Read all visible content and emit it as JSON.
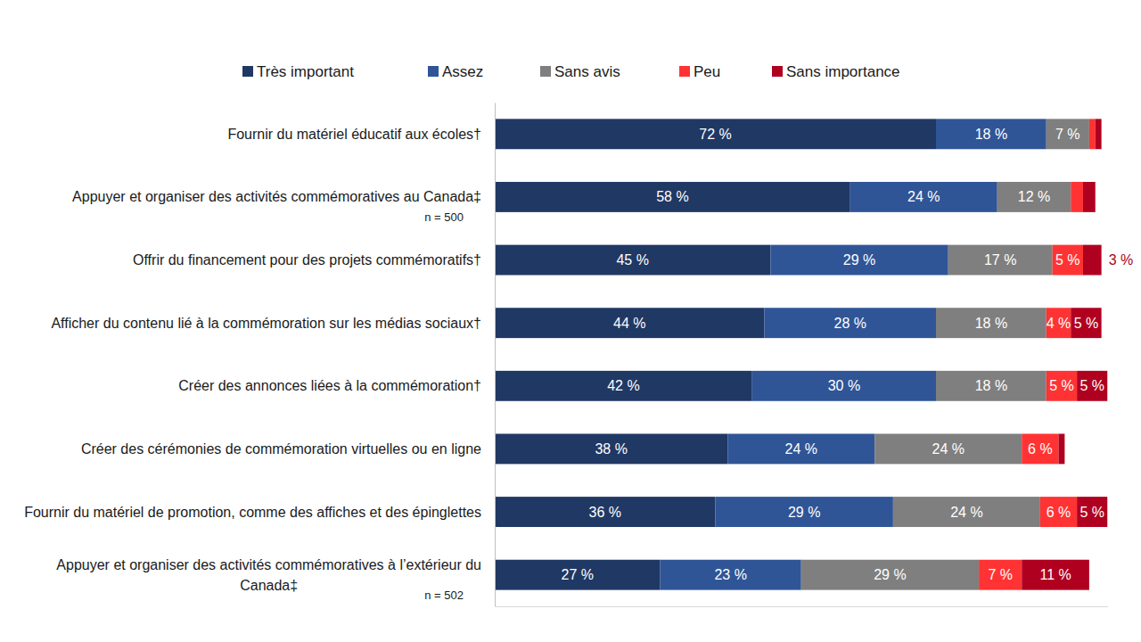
{
  "chart_data": {
    "type": "bar",
    "orientation": "horizontal",
    "stacked": true,
    "data_labels": true,
    "tick_labels": "y",
    "grid": false,
    "legend": "top",
    "xlim": [
      0,
      100
    ],
    "categories": [
      "Fournir du matériel éducatif aux écoles†",
      "Appuyer et organiser des activités commémoratives au Canada‡",
      "Offrir du financement pour des projets commémoratifs†",
      "Afficher du contenu lié à la commémoration sur les médias sociaux†",
      "Créer des annonces liées à la commémoration†",
      "Créer des cérémonies de commémoration virtuelles ou en ligne",
      "Fournir du matériel de promotion, comme des affiches et des épinglettes",
      "Appuyer et organiser des activités commémoratives à l’extérieur du Canada‡"
    ],
    "annotations": [
      null,
      "n = 500",
      null,
      null,
      null,
      null,
      null,
      "n = 502"
    ],
    "series": [
      {
        "name": "Très important",
        "color": "#203864",
        "values": [
          72,
          58,
          45,
          44,
          42,
          38,
          36,
          27
        ],
        "value_labels": [
          "72 %",
          "58 %",
          "45 %",
          "44 %",
          "42 %",
          "38 %",
          "36 %",
          "27 %"
        ]
      },
      {
        "name": "Assez",
        "color": "#2f5597",
        "values": [
          18,
          24,
          29,
          28,
          30,
          24,
          29,
          23
        ],
        "value_labels": [
          "18 %",
          "24 %",
          "29 %",
          "28 %",
          "30 %",
          "24 %",
          "29 %",
          "23 %"
        ]
      },
      {
        "name": "Sans avis",
        "color": "#7f7f7f",
        "values": [
          7,
          12,
          17,
          18,
          18,
          24,
          24,
          29
        ],
        "value_labels": [
          "7 %",
          "12 %",
          "17 %",
          "18 %",
          "18 %",
          "24 %",
          "24 %",
          "29 %"
        ]
      },
      {
        "name": "Peu",
        "color": "#ff3333",
        "values": [
          1,
          2,
          5,
          4,
          5,
          6,
          6,
          7
        ],
        "value_labels": [
          null,
          null,
          "5 %",
          "4 %",
          "5 %",
          "6 %",
          "6 %",
          "7 %"
        ]
      },
      {
        "name": "Sans importance",
        "color": "#b00020",
        "values": [
          1,
          2,
          3,
          5,
          5,
          1,
          5,
          11
        ],
        "value_labels": [
          null,
          null,
          "3 %",
          "5 %",
          "5 %",
          null,
          "5 %",
          "11 %"
        ]
      }
    ]
  }
}
